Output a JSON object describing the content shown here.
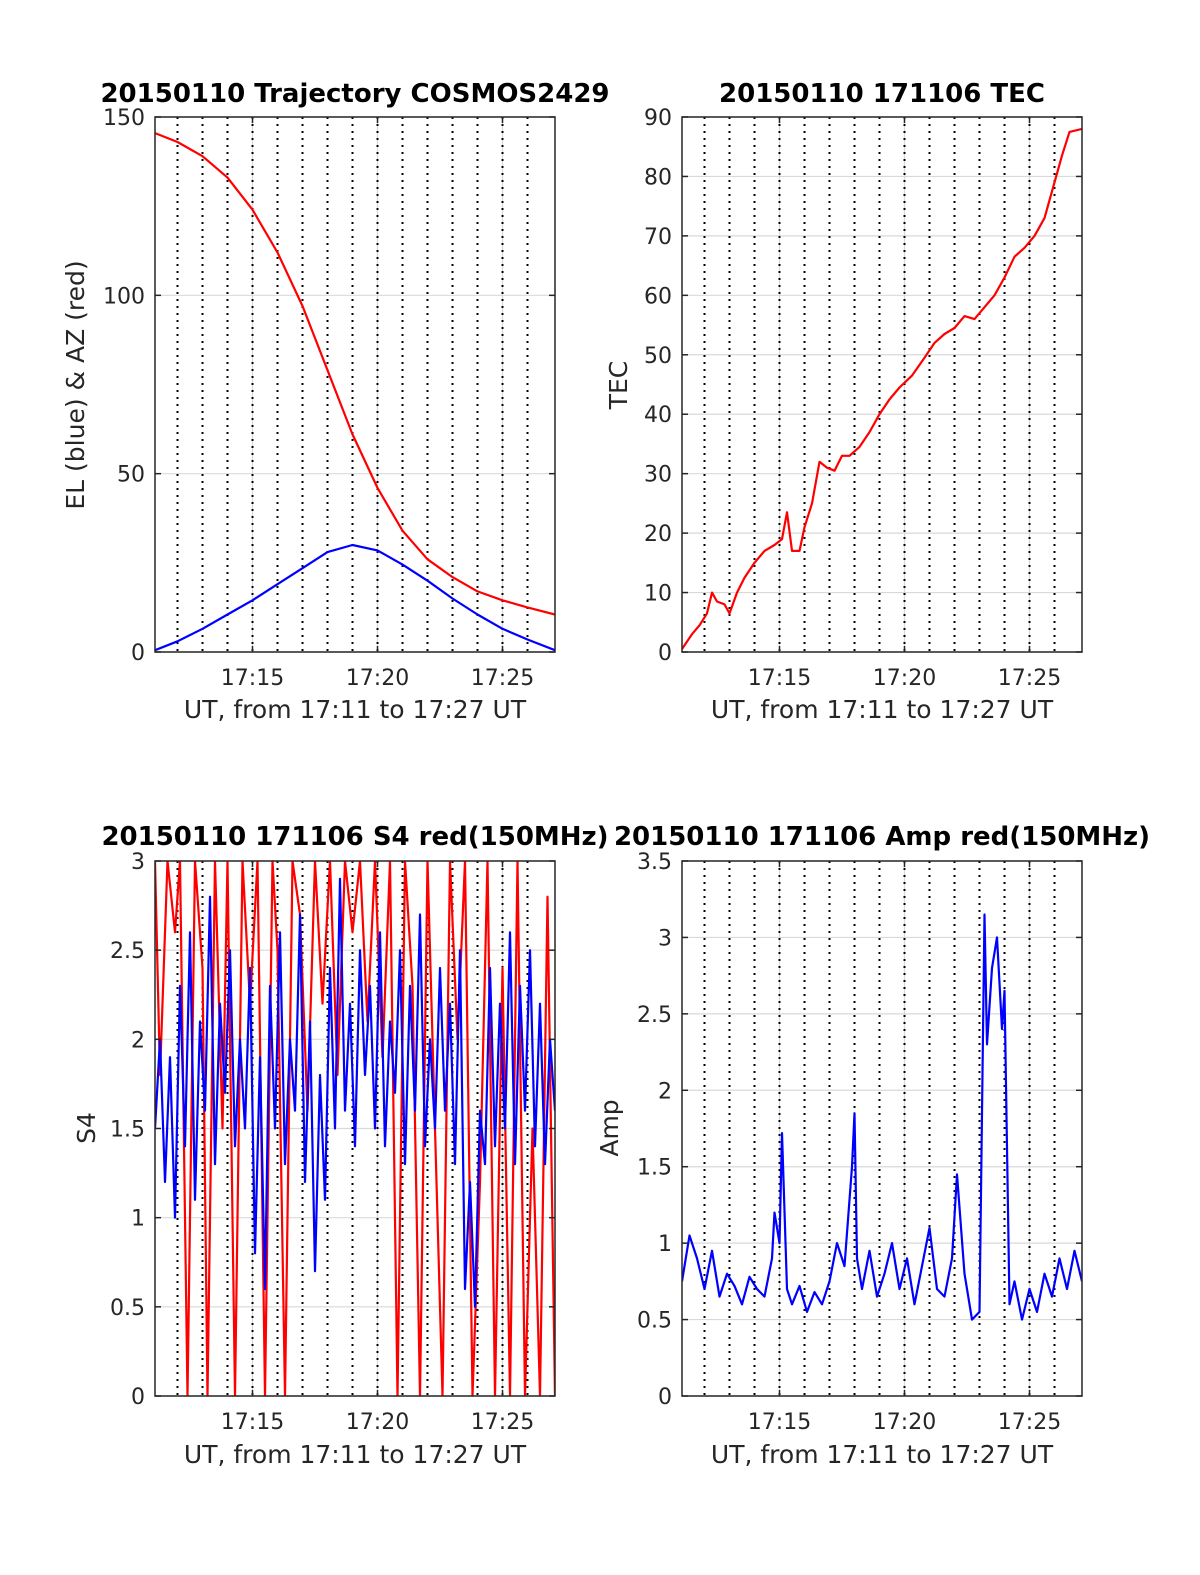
{
  "colors": {
    "red": "#ff0000",
    "blue": "#0000ff",
    "grid": "#d9d9d9",
    "axis": "#262626"
  },
  "chart_data": [
    {
      "type": "line",
      "title": "20150110 Trajectory COSMOS2429",
      "xlabel": "UT, from 17:11 to 17:27 UT",
      "ylabel": "EL (blue) & AZ (red)",
      "x_unit": "minutes of UT hour 17",
      "xlim": [
        11.1,
        27.1
      ],
      "ylim": [
        0,
        150
      ],
      "xticks": [
        15,
        20,
        25
      ],
      "xtick_labels": [
        "17:15",
        "17:20",
        "17:25"
      ],
      "yticks": [
        0,
        50,
        100,
        150
      ],
      "ytick_labels": [
        "0",
        "50",
        "100",
        "150"
      ],
      "grid": true,
      "vertical_dotted_lines_x": [
        12,
        13,
        14,
        15,
        16,
        17,
        18,
        19,
        20,
        21,
        22,
        23,
        24,
        25,
        26
      ],
      "series": [
        {
          "color": "red",
          "x": [
            11.1,
            12,
            13,
            14,
            15,
            16,
            17,
            18,
            19,
            20,
            21,
            22,
            23,
            24,
            25,
            26,
            27.1
          ],
          "values": [
            145.5,
            143,
            139,
            133,
            124,
            112,
            97,
            79,
            61,
            46,
            34,
            26,
            21,
            17,
            14.5,
            12.5,
            10.5
          ]
        },
        {
          "color": "blue",
          "x": [
            11.1,
            12,
            13,
            14,
            15,
            16,
            17,
            18,
            19,
            20,
            21,
            22,
            23,
            24,
            25,
            26,
            27.1
          ],
          "values": [
            0.5,
            3,
            6.5,
            10.5,
            14.5,
            19,
            23.5,
            28,
            30,
            28.5,
            24.5,
            20,
            15,
            10.5,
            6.5,
            3.5,
            0.5
          ]
        }
      ]
    },
    {
      "type": "line",
      "title": "20150110 171106 TEC",
      "xlabel": "UT, from 17:11 to 17:27 UT",
      "ylabel": "TEC",
      "x_unit": "minutes of UT hour 17",
      "xlim": [
        11.1,
        27.1
      ],
      "ylim": [
        0,
        90
      ],
      "xticks": [
        15,
        20,
        25
      ],
      "xtick_labels": [
        "17:15",
        "17:20",
        "17:25"
      ],
      "yticks": [
        0,
        10,
        20,
        30,
        40,
        50,
        60,
        70,
        80,
        90
      ],
      "ytick_labels": [
        "0",
        "10",
        "20",
        "30",
        "40",
        "50",
        "60",
        "70",
        "80",
        "90"
      ],
      "grid": true,
      "vertical_dotted_lines_x": [
        12,
        13,
        14,
        15,
        16,
        17,
        18,
        19,
        20,
        21,
        22,
        23,
        24,
        25,
        26
      ],
      "series": [
        {
          "color": "red",
          "x": [
            11.1,
            11.5,
            11.8,
            12.1,
            12.3,
            12.5,
            12.8,
            13.0,
            13.3,
            13.6,
            14.0,
            14.4,
            14.8,
            15.1,
            15.3,
            15.5,
            15.8,
            16.0,
            16.3,
            16.6,
            16.9,
            17.2,
            17.5,
            17.8,
            18.2,
            18.6,
            19.0,
            19.4,
            19.8,
            20.3,
            20.8,
            21.2,
            21.6,
            22.0,
            22.4,
            22.8,
            23.2,
            23.6,
            24.0,
            24.4,
            24.8,
            25.2,
            25.6,
            26.0,
            26.3,
            26.6,
            27.1
          ],
          "values": [
            0.5,
            3,
            4.5,
            6.5,
            10,
            8.5,
            8,
            6.5,
            10,
            12.5,
            15,
            17,
            18,
            19,
            23.5,
            17,
            17,
            21,
            25,
            32,
            31,
            30.5,
            33,
            33,
            34.5,
            37,
            40,
            42.5,
            44.5,
            46.5,
            49.5,
            52,
            53.5,
            54.5,
            56.5,
            56,
            58,
            60,
            63,
            66.5,
            68,
            70,
            73,
            79,
            83.5,
            87.5,
            88
          ]
        }
      ]
    },
    {
      "type": "line",
      "title": "20150110 171106 S4 red(150MHz)",
      "xlabel": "UT, from 17:11 to 17:27 UT",
      "ylabel": "S4",
      "x_unit": "minutes of UT hour 17",
      "xlim": [
        11.1,
        27.1
      ],
      "ylim": [
        0,
        3
      ],
      "xticks": [
        15,
        20,
        25
      ],
      "xtick_labels": [
        "17:15",
        "17:20",
        "17:25"
      ],
      "yticks": [
        0,
        0.5,
        1,
        1.5,
        2,
        2.5,
        3
      ],
      "ytick_labels": [
        "0",
        "0.5",
        "1",
        "1.5",
        "2",
        "2.5",
        "3"
      ],
      "grid": true,
      "vertical_dotted_lines_x": [
        12,
        13,
        14,
        15,
        16,
        17,
        18,
        19,
        20,
        21,
        22,
        23,
        24,
        25,
        26
      ],
      "series": [
        {
          "color": "red",
          "x": [
            11.1,
            11.3,
            11.6,
            11.9,
            12.1,
            12.4,
            12.7,
            13.0,
            13.2,
            13.5,
            13.8,
            14.0,
            14.3,
            14.6,
            14.9,
            15.2,
            15.5,
            15.8,
            16.0,
            16.3,
            16.6,
            16.9,
            17.2,
            17.5,
            17.8,
            18.1,
            18.4,
            18.7,
            19.0,
            19.3,
            19.6,
            19.9,
            20.2,
            20.5,
            20.8,
            21.1,
            21.4,
            21.7,
            22.0,
            22.3,
            22.6,
            22.9,
            23.2,
            23.5,
            23.8,
            24.1,
            24.4,
            24.7,
            25.0,
            25.3,
            25.6,
            25.9,
            26.2,
            26.5,
            26.8,
            27.1
          ],
          "values": [
            3,
            1.8,
            3,
            2.6,
            3,
            0,
            3,
            2.4,
            0,
            3,
            1.5,
            3,
            0,
            3,
            2.2,
            3,
            0,
            3,
            2.5,
            0,
            3,
            2.7,
            1.6,
            3,
            2.2,
            3,
            1.8,
            3,
            2.6,
            3,
            2.1,
            3,
            1.9,
            3,
            0,
            3,
            2.3,
            0,
            3,
            1.5,
            0,
            3,
            2.0,
            3,
            0,
            1.2,
            3,
            0,
            2.4,
            0,
            3,
            0,
            1.5,
            0,
            2.8,
            0
          ]
        },
        {
          "color": "blue",
          "x": [
            11.1,
            11.3,
            11.5,
            11.7,
            11.9,
            12.1,
            12.3,
            12.5,
            12.7,
            12.9,
            13.1,
            13.3,
            13.5,
            13.7,
            13.9,
            14.1,
            14.3,
            14.5,
            14.7,
            14.9,
            15.1,
            15.3,
            15.5,
            15.7,
            15.9,
            16.1,
            16.3,
            16.5,
            16.7,
            16.9,
            17.1,
            17.3,
            17.5,
            17.7,
            17.9,
            18.1,
            18.3,
            18.5,
            18.7,
            18.9,
            19.1,
            19.3,
            19.5,
            19.7,
            19.9,
            20.1,
            20.3,
            20.5,
            20.7,
            20.9,
            21.1,
            21.3,
            21.5,
            21.7,
            21.9,
            22.1,
            22.3,
            22.5,
            22.7,
            22.9,
            23.1,
            23.3,
            23.5,
            23.7,
            23.9,
            24.1,
            24.3,
            24.5,
            24.7,
            24.9,
            25.1,
            25.3,
            25.5,
            25.7,
            25.9,
            26.1,
            26.3,
            26.5,
            26.7,
            26.9,
            27.1
          ],
          "values": [
            1.5,
            2.0,
            1.2,
            1.9,
            1.0,
            2.3,
            1.4,
            2.6,
            1.1,
            2.1,
            1.6,
            2.8,
            1.3,
            2.2,
            1.7,
            2.5,
            1.4,
            2.0,
            1.5,
            2.4,
            0.8,
            1.9,
            0.6,
            2.3,
            1.5,
            2.6,
            1.3,
            2.0,
            1.6,
            2.7,
            1.2,
            2.1,
            0.7,
            1.8,
            1.1,
            2.4,
            1.5,
            2.9,
            1.6,
            2.2,
            1.4,
            2.5,
            1.8,
            2.3,
            1.5,
            2.6,
            1.4,
            2.1,
            1.7,
            2.5,
            1.3,
            2.3,
            1.6,
            2.7,
            1.4,
            2.0,
            1.5,
            2.4,
            1.6,
            2.2,
            1.3,
            2.5,
            0.6,
            1.2,
            0.5,
            1.6,
            1.3,
            2.4,
            1.4,
            2.2,
            1.5,
            2.6,
            1.3,
            2.3,
            1.6,
            2.5,
            1.4,
            2.2,
            1.3,
            2.0,
            1.6
          ]
        }
      ]
    },
    {
      "type": "line",
      "title": "20150110 171106 Amp red(150MHz)",
      "xlabel": "UT, from 17:11 to 17:27 UT",
      "ylabel": "Amp",
      "x_unit": "minutes of UT hour 17",
      "xlim": [
        11.1,
        27.1
      ],
      "ylim": [
        0,
        3.5
      ],
      "xticks": [
        15,
        20,
        25
      ],
      "xtick_labels": [
        "17:15",
        "17:20",
        "17:25"
      ],
      "yticks": [
        0,
        0.5,
        1,
        1.5,
        2,
        2.5,
        3,
        3.5
      ],
      "ytick_labels": [
        "0",
        "0.5",
        "1",
        "1.5",
        "2",
        "2.5",
        "3",
        "3.5"
      ],
      "grid": true,
      "vertical_dotted_lines_x": [
        12,
        13,
        14,
        15,
        16,
        17,
        18,
        19,
        20,
        21,
        22,
        23,
        24,
        25,
        26
      ],
      "series": [
        {
          "color": "blue",
          "x": [
            11.1,
            11.4,
            11.7,
            12.0,
            12.3,
            12.6,
            12.9,
            13.2,
            13.5,
            13.8,
            14.1,
            14.4,
            14.7,
            14.8,
            15.0,
            15.1,
            15.3,
            15.5,
            15.8,
            16.1,
            16.4,
            16.7,
            17.0,
            17.3,
            17.6,
            17.9,
            18.0,
            18.1,
            18.3,
            18.6,
            18.9,
            19.2,
            19.5,
            19.8,
            20.1,
            20.4,
            20.7,
            21.0,
            21.3,
            21.6,
            21.9,
            22.1,
            22.4,
            22.7,
            23.0,
            23.2,
            23.3,
            23.5,
            23.7,
            23.9,
            24.0,
            24.2,
            24.4,
            24.7,
            25.0,
            25.3,
            25.6,
            25.9,
            26.2,
            26.5,
            26.8,
            27.1
          ],
          "values": [
            0.75,
            1.05,
            0.9,
            0.7,
            0.95,
            0.65,
            0.8,
            0.72,
            0.6,
            0.78,
            0.7,
            0.65,
            0.9,
            1.2,
            1.0,
            1.72,
            0.7,
            0.6,
            0.72,
            0.55,
            0.68,
            0.6,
            0.75,
            1.0,
            0.85,
            1.5,
            1.85,
            0.9,
            0.7,
            0.95,
            0.65,
            0.8,
            1.0,
            0.7,
            0.9,
            0.6,
            0.85,
            1.1,
            0.7,
            0.65,
            0.9,
            1.45,
            0.8,
            0.5,
            0.55,
            3.15,
            2.3,
            2.8,
            3.0,
            2.4,
            2.65,
            0.6,
            0.75,
            0.5,
            0.7,
            0.55,
            0.8,
            0.65,
            0.9,
            0.7,
            0.95,
            0.75
          ]
        }
      ]
    }
  ]
}
